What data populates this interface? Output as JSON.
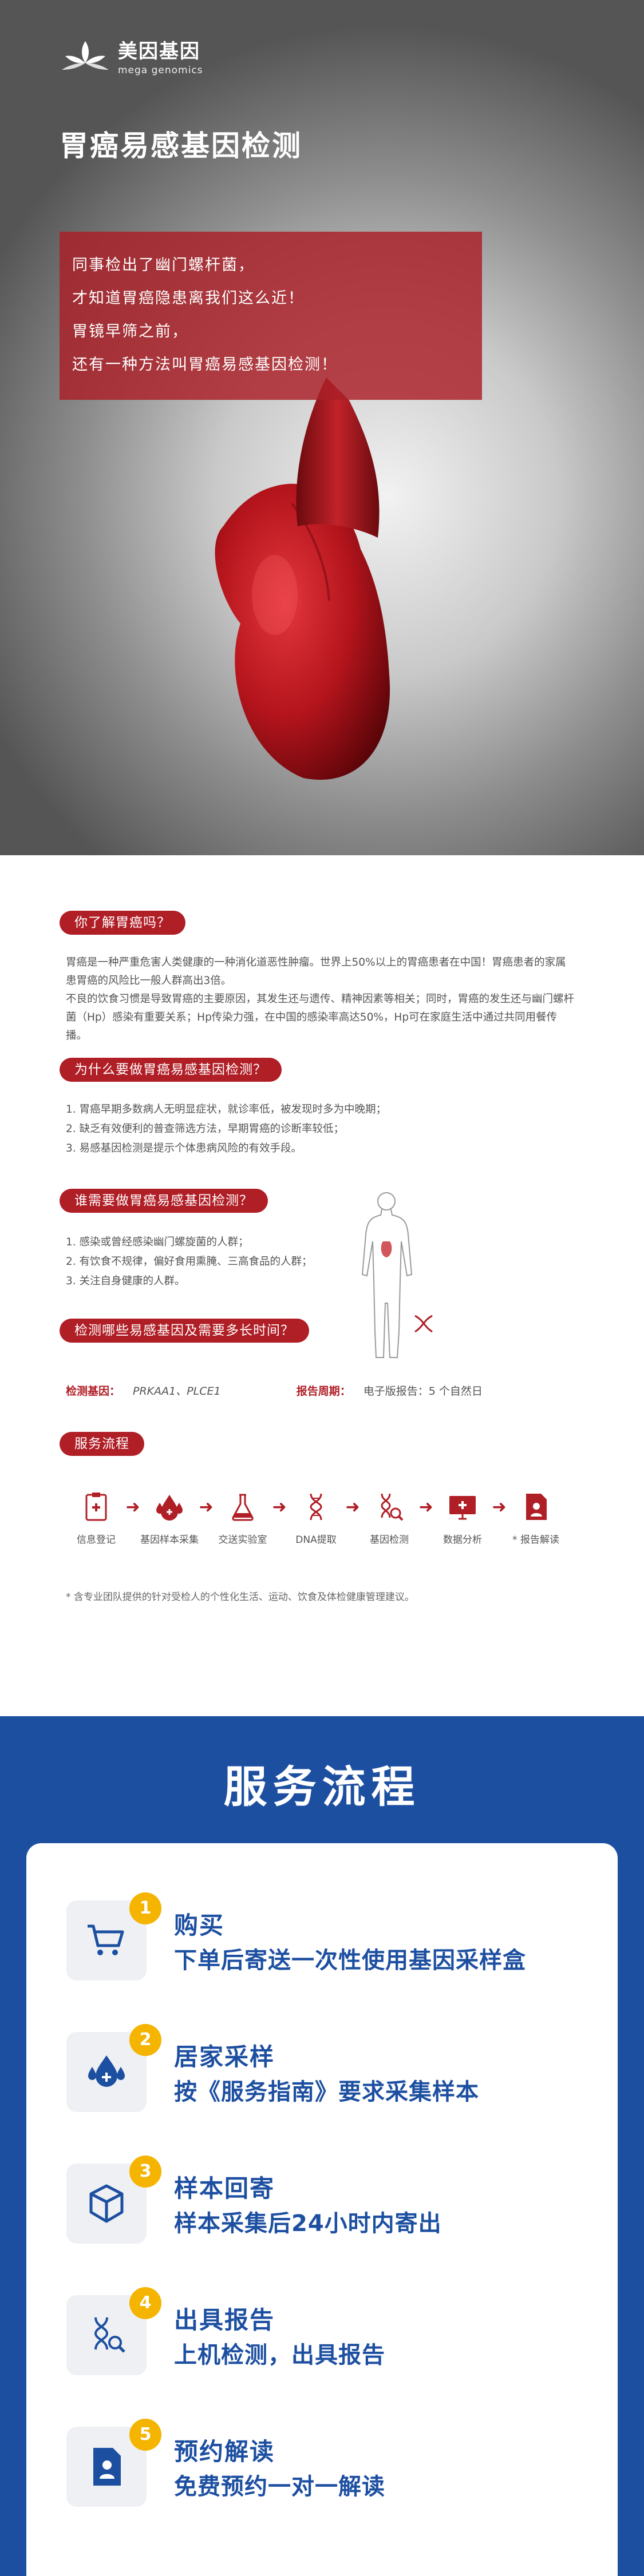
{
  "brand": {
    "name_cn": "美因基因",
    "name_en": "mega genomics"
  },
  "hero": {
    "title": "胃癌易感基因检测",
    "lines": [
      "同事检出了幽门螺杆菌，",
      "才知道胃癌隐患离我们这么近！",
      "胃镜早筛之前，",
      "还有一种方法叫胃癌易感基因检测！"
    ]
  },
  "info": {
    "q1": {
      "title": "你了解胃癌吗？",
      "para1": "胃癌是一种严重危害人类健康的一种消化道恶性肿瘤。世界上50%以上的胃癌患者在中国！胃癌患者的家属患胃癌的风险比一般人群高出3倍。",
      "para2": "不良的饮食习惯是导致胃癌的主要原因，其发生还与遗传、精神因素等相关；同时，胃癌的发生还与幽门螺杆菌（Hp）感染有重要关系；Hp传染力强，在中国的感染率高达50%，Hp可在家庭生活中通过共同用餐传播。"
    },
    "q2": {
      "title": "为什么要做胃癌易感基因检测？",
      "items": [
        "1. 胃癌早期多数病人无明显症状，就诊率低，被发现时多为中晚期；",
        "2. 缺乏有效便利的普查筛选方法，早期胃癌的诊断率较低；",
        "3. 易感基因检测是提示个体患病风险的有效手段。"
      ]
    },
    "q3": {
      "title": "谁需要做胃癌易感基因检测？",
      "items": [
        "1. 感染或曾经感染幽门螺旋菌的人群；",
        "2. 有饮食不规律，偏好食用熏腌、三高食品的人群；",
        "3. 关注自身健康的人群。"
      ]
    },
    "q4": {
      "title": "检测哪些易感基因及需要多长时间？",
      "gene_label": "检测基因：",
      "gene_value": "PRKAA1、PLCE1",
      "period_label": "报告周期：",
      "period_value": "电子版报告：5 个自然日"
    },
    "flow": {
      "title": "服务流程",
      "steps": [
        "信息登记",
        "基因样本采集",
        "交送实验室",
        "DNA提取",
        "基因检测",
        "数据分析",
        "* 报告解读"
      ],
      "note": "* 含专业团队提供的针对受检人的个性化生活、运动、饮食及体检健康管理建议。"
    }
  },
  "service": {
    "title": "服务流程",
    "items": [
      {
        "num": "1",
        "name": "购买",
        "desc": "下单后寄送一次性使用基因采样盒",
        "icon": "cart-icon"
      },
      {
        "num": "2",
        "name": "居家采样",
        "desc": "按《服务指南》要求采集样本",
        "icon": "drops-icon"
      },
      {
        "num": "3",
        "name": "样本回寄",
        "desc": "样本采集后24小时内寄出",
        "icon": "box-icon"
      },
      {
        "num": "4",
        "name": "出具报告",
        "desc": "上机检测，出具报告",
        "icon": "dna-microscope-icon"
      },
      {
        "num": "5",
        "name": "预约解读",
        "desc": "免费预约一对一解读",
        "icon": "report-person-icon"
      }
    ]
  },
  "colors": {
    "accent_red": "#b01e26",
    "brand_blue": "#1d4fa1",
    "badge_yellow": "#f5b400"
  }
}
